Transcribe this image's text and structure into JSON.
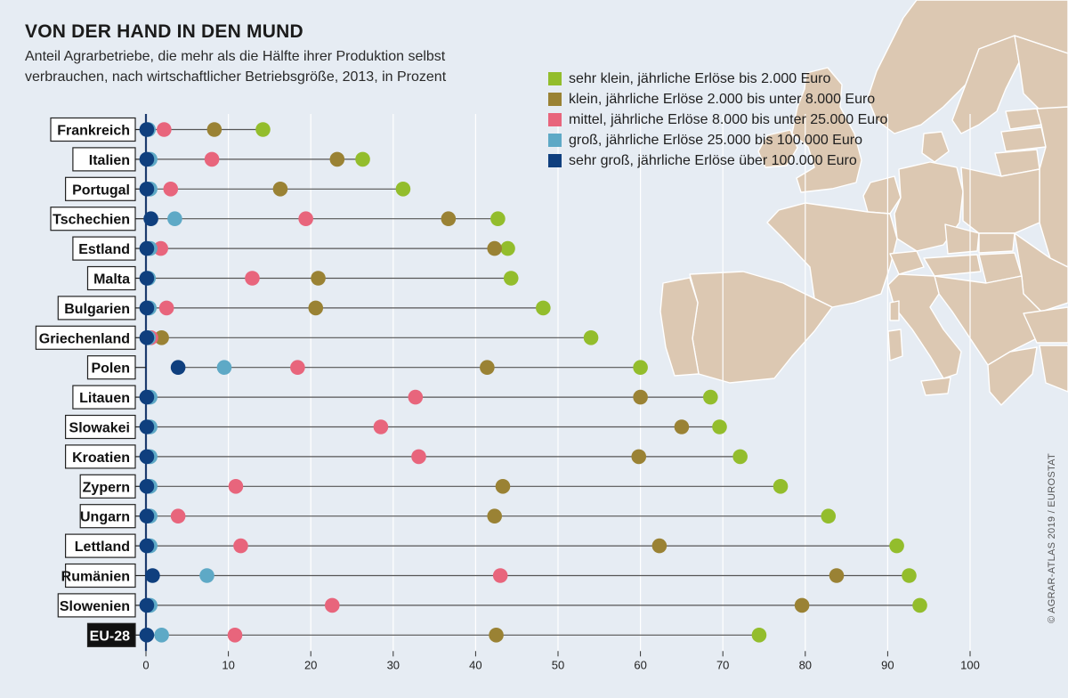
{
  "title": "VON DER HAND IN DEN MUND",
  "subtitle": "Anteil Agrarbetriebe, die mehr als die Hälfte ihrer Produktion selbst verbrauchen, nach wirtschaftlicher Betriebsgröße, 2013, in Prozent",
  "credit": "© AGRAR-ATLAS 2019 / EUROSTAT",
  "colors": {
    "background": "#e6ecf3",
    "land": "#dcc8b2",
    "land_border": "#ffffff",
    "axis": "#1c3b6e",
    "connector": "#555555",
    "gridline": "#ffffff"
  },
  "legend": [
    {
      "label": "sehr klein, jährliche Erlöse bis 2.000 Euro",
      "color": "#93bd2c"
    },
    {
      "label": "klein, jährliche Erlöse 2.000 bis unter 8.000 Euro",
      "color": "#9a8234"
    },
    {
      "label": "mittel, jährliche Erlöse 8.000 bis unter 25.000 Euro",
      "color": "#e8657c"
    },
    {
      "label": "groß, jährliche Erlöse 25.000 bis 100.000 Euro",
      "color": "#5ea9c6"
    },
    {
      "label": "sehr groß, jährliche Erlöse über 100.000 Euro",
      "color": "#0f3f7e"
    }
  ],
  "chart_data": {
    "type": "dot-range",
    "title": "VON DER HAND IN DEN MUND",
    "xlim": [
      0,
      100
    ],
    "ticks": [
      "0",
      "10",
      "20",
      "30",
      "40",
      "50",
      "60",
      "70",
      "80",
      "90",
      "100"
    ],
    "grid": true,
    "legend_position": "top-right",
    "series_names": [
      "sehr klein, jährliche Erlöse bis 2.000 Euro",
      "klein, jährliche Erlöse 2.000 bis unter 8.000 Euro",
      "mittel, jährliche Erlöse 8.000 bis unter 25.000 Euro",
      "groß, jährliche Erlöse 25.000 bis 100.000 Euro",
      "sehr groß, jährliche Erlöse über 100.000 Euro"
    ],
    "rows": [
      {
        "country": "Frankreich",
        "values": [
          14.2,
          8.3,
          2.2,
          0.3,
          0.1
        ]
      },
      {
        "country": "Italien",
        "values": [
          26.3,
          23.2,
          8.0,
          0.5,
          0.1
        ]
      },
      {
        "country": "Portugal",
        "values": [
          31.2,
          16.3,
          3.0,
          0.5,
          0.1
        ]
      },
      {
        "country": "Tschechien",
        "values": [
          42.7,
          36.7,
          19.4,
          3.5,
          0.6
        ]
      },
      {
        "country": "Estland",
        "values": [
          43.9,
          42.3,
          1.8,
          0.5,
          0.1
        ]
      },
      {
        "country": "Malta",
        "values": [
          44.3,
          20.9,
          12.9,
          0.3,
          0.1
        ]
      },
      {
        "country": "Bulgarien",
        "values": [
          48.2,
          20.6,
          2.5,
          0.4,
          0.1
        ]
      },
      {
        "country": "Griechenland",
        "values": [
          54.0,
          1.9,
          0.6,
          0.3,
          0.1
        ]
      },
      {
        "country": "Polen",
        "values": [
          60.0,
          41.4,
          18.4,
          9.5,
          3.9
        ]
      },
      {
        "country": "Litauen",
        "values": [
          68.5,
          60.0,
          32.7,
          0.5,
          0.1
        ]
      },
      {
        "country": "Slowakei",
        "values": [
          69.6,
          65.0,
          28.5,
          0.5,
          0.1
        ]
      },
      {
        "country": "Kroatien",
        "values": [
          72.1,
          59.8,
          33.1,
          0.5,
          0.1
        ]
      },
      {
        "country": "Zypern",
        "values": [
          77.0,
          43.3,
          10.9,
          0.5,
          0.1
        ]
      },
      {
        "country": "Ungarn",
        "values": [
          82.8,
          42.3,
          3.9,
          0.5,
          0.1
        ]
      },
      {
        "country": "Lettland",
        "values": [
          91.1,
          62.3,
          11.5,
          0.5,
          0.1
        ]
      },
      {
        "country": "Rumänien",
        "values": [
          92.6,
          83.8,
          43.0,
          7.4,
          0.8
        ]
      },
      {
        "country": "Slowenien",
        "values": [
          93.9,
          79.6,
          22.6,
          0.5,
          0.1
        ]
      },
      {
        "country": "EU-28",
        "values": [
          74.4,
          42.5,
          10.8,
          1.9,
          0.1
        ],
        "highlight": true
      }
    ]
  }
}
